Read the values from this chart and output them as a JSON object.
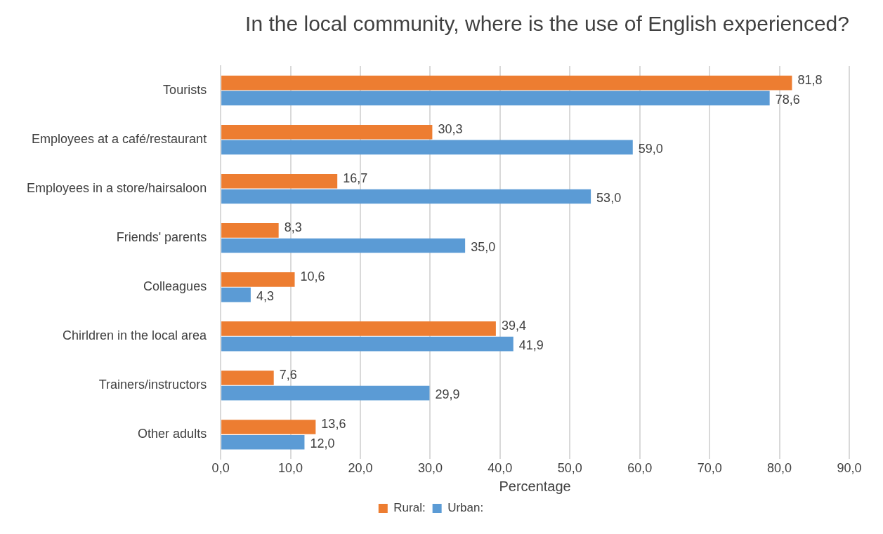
{
  "chart_data": {
    "type": "bar",
    "orientation": "horizontal",
    "title": "In the local community, where is the use of English experienced?",
    "xlabel": "Percentage",
    "categories": [
      "Tourists",
      "Employees at a café/restaurant",
      "Employees in a store/hairsaloon",
      "Friends' parents",
      "Colleagues",
      "Chirldren in the local area",
      "Trainers/instructors",
      "Other adults"
    ],
    "series": [
      {
        "name": "Rural:",
        "color": "#ed7d31",
        "values": [
          81.8,
          30.3,
          16.7,
          8.3,
          10.6,
          39.4,
          7.6,
          13.6
        ],
        "value_labels": [
          "81,8",
          "30,3",
          "16,7",
          "8,3",
          "10,6",
          "39,4",
          "7,6",
          "13,6"
        ]
      },
      {
        "name": "Urban:",
        "color": "#5b9bd5",
        "values": [
          78.6,
          59.0,
          53.0,
          35.0,
          4.3,
          41.9,
          29.9,
          12.0
        ],
        "value_labels": [
          "78,6",
          "59,0",
          "53,0",
          "35,0",
          "4,3",
          "41,9",
          "29,9",
          "12,0"
        ]
      }
    ],
    "xlim": [
      0,
      90
    ],
    "xticks": [
      {
        "value": 0,
        "label": "0,0"
      },
      {
        "value": 10,
        "label": "10,0"
      },
      {
        "value": 20,
        "label": "20,0"
      },
      {
        "value": 30,
        "label": "30,0"
      },
      {
        "value": 40,
        "label": "40,0"
      },
      {
        "value": 50,
        "label": "50,0"
      },
      {
        "value": 60,
        "label": "60,0"
      },
      {
        "value": 70,
        "label": "70,0"
      },
      {
        "value": 80,
        "label": "80,0"
      },
      {
        "value": 90,
        "label": "90,0"
      }
    ],
    "grid": "x",
    "legend": "bottom"
  }
}
